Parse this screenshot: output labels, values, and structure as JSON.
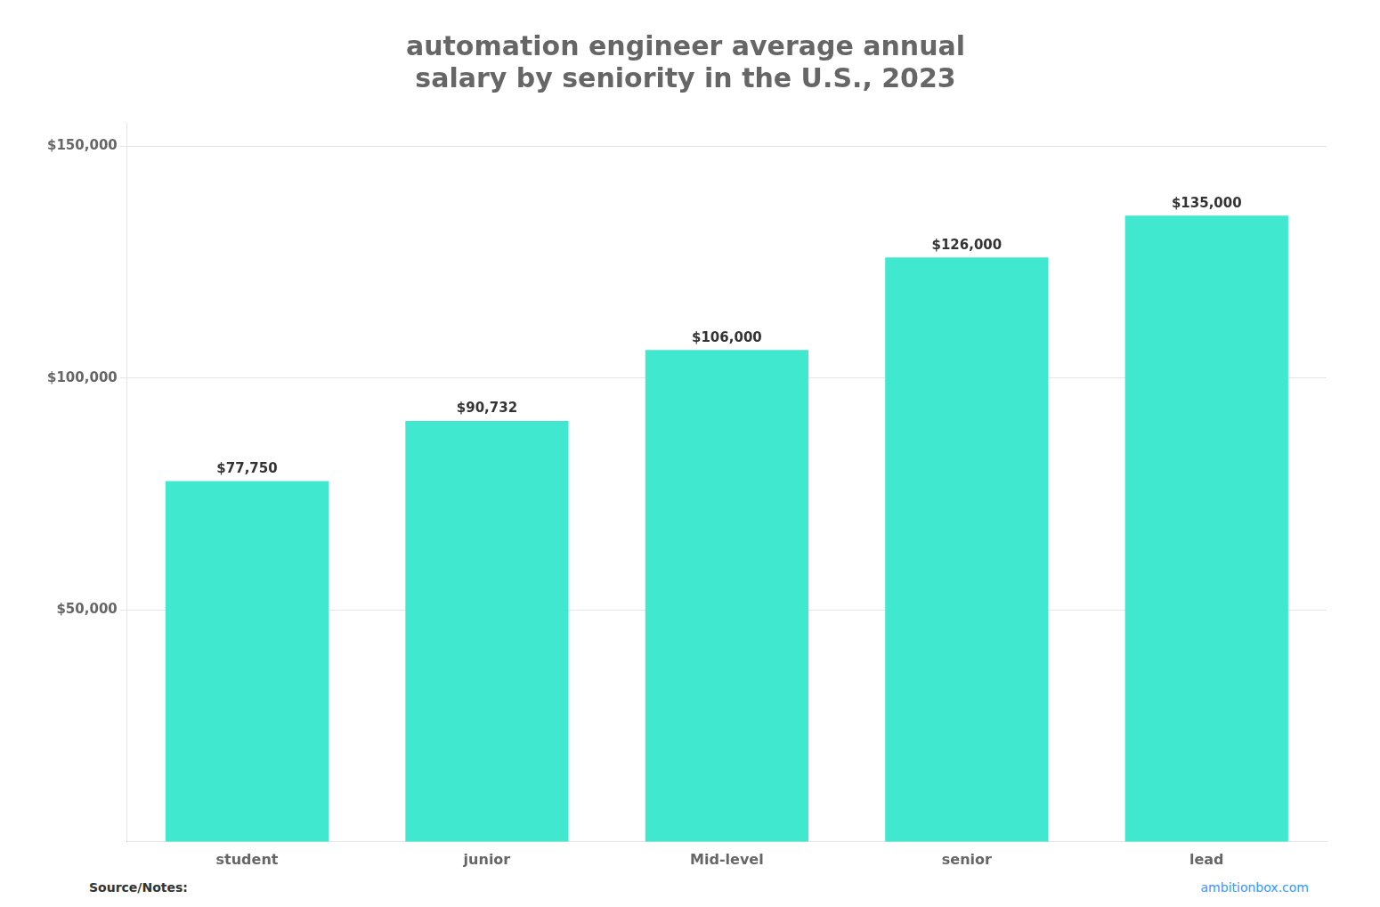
{
  "chart_data": {
    "type": "bar",
    "title": "automation engineer average annual\nsalary by seniority in the U.S., 2023",
    "categories": [
      "student",
      "junior",
      "Mid-level",
      "senior",
      "lead"
    ],
    "values": [
      77750,
      90732,
      106000,
      126000,
      135000
    ],
    "value_labels": [
      "$77,750",
      "$90,732",
      "$106,000",
      "$126,000",
      "$135,000"
    ],
    "data_labels": true,
    "color": "#40e8d0",
    "ylim": [
      0,
      155000
    ],
    "yticks": [
      {
        "value": 50000,
        "label": "$50,000"
      },
      {
        "value": 100000,
        "label": "$100,000"
      },
      {
        "value": 150000,
        "label": "$150,000"
      }
    ],
    "grid": true,
    "annotations": [
      {
        "text": "Source/Notes:"
      },
      {
        "text": "ambitionbox.com",
        "color": "#3399ff"
      }
    ]
  }
}
